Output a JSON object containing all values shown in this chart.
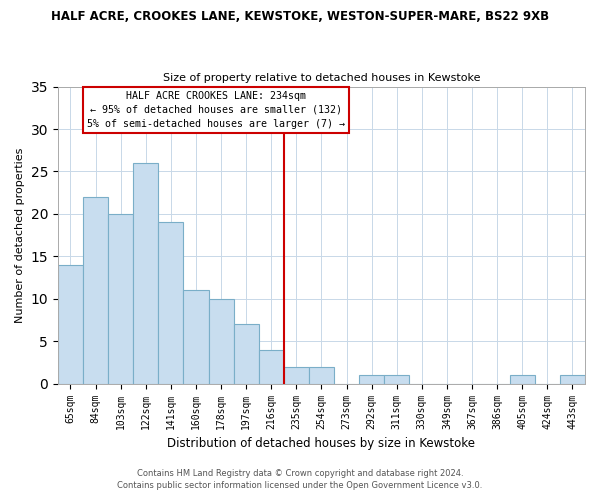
{
  "title1": "HALF ACRE, CROOKES LANE, KEWSTOKE, WESTON-SUPER-MARE, BS22 9XB",
  "title2": "Size of property relative to detached houses in Kewstoke",
  "xlabel": "Distribution of detached houses by size in Kewstoke",
  "ylabel": "Number of detached properties",
  "bar_labels": [
    "65sqm",
    "84sqm",
    "103sqm",
    "122sqm",
    "141sqm",
    "160sqm",
    "178sqm",
    "197sqm",
    "216sqm",
    "235sqm",
    "254sqm",
    "273sqm",
    "292sqm",
    "311sqm",
    "330sqm",
    "349sqm",
    "367sqm",
    "386sqm",
    "405sqm",
    "424sqm",
    "443sqm"
  ],
  "bar_values": [
    14,
    22,
    20,
    26,
    19,
    11,
    10,
    7,
    4,
    2,
    2,
    0,
    1,
    1,
    0,
    0,
    0,
    0,
    1,
    0,
    1
  ],
  "bar_color": "#c8ddef",
  "bar_edge_color": "#7aaec8",
  "vline_x_index": 9,
  "vline_color": "#cc0000",
  "annotation_title": "HALF ACRE CROOKES LANE: 234sqm",
  "annotation_line1": "← 95% of detached houses are smaller (132)",
  "annotation_line2": "5% of semi-detached houses are larger (7) →",
  "annotation_box_color": "#ffffff",
  "annotation_box_edge": "#cc0000",
  "ylim": [
    0,
    35
  ],
  "yticks": [
    0,
    5,
    10,
    15,
    20,
    25,
    30,
    35
  ],
  "footer1": "Contains HM Land Registry data © Crown copyright and database right 2024.",
  "footer2": "Contains public sector information licensed under the Open Government Licence v3.0.",
  "bg_color": "#ffffff",
  "grid_color": "#c8d8e8"
}
